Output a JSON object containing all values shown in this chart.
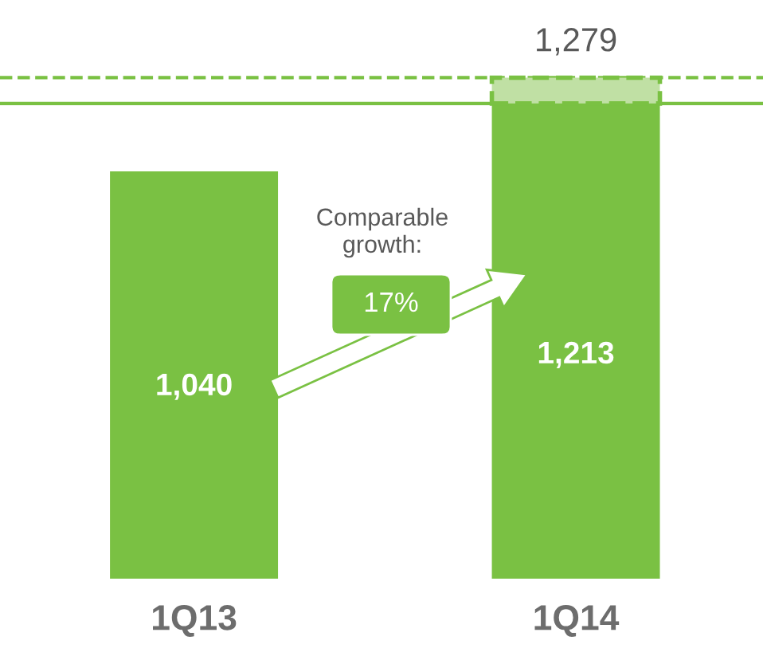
{
  "chart_data": {
    "type": "bar",
    "stacked": true,
    "categories": [
      "1Q13",
      "1Q14"
    ],
    "series": [
      {
        "color": "#7ac143",
        "values": [
          1040,
          1213
        ],
        "value_labels": [
          "1,040",
          "1,213"
        ]
      },
      {
        "color": "#c0e0a4",
        "values": [
          null,
          66
        ],
        "line_style": "dashed"
      }
    ],
    "totals": [
      null,
      "1,279"
    ],
    "ref_lines": [
      {
        "axis": "y",
        "value": 1213,
        "color": "#7ac143",
        "line_style": "solid"
      },
      {
        "axis": "y",
        "value": 1279,
        "color": "#7ac143",
        "line_style": "dashed"
      }
    ],
    "annotations": [
      "Comparable growth:",
      "17%"
    ],
    "grid": false,
    "legend": false
  }
}
